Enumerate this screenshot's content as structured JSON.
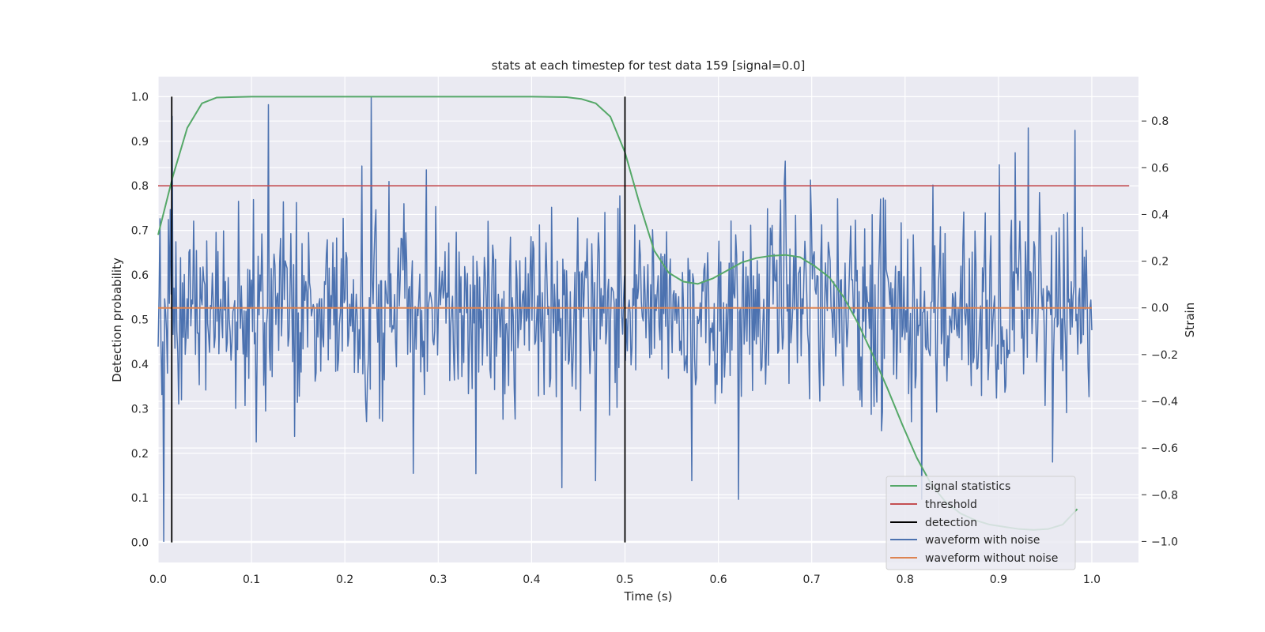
{
  "chart_data": {
    "type": "line",
    "title": "stats at each timestep for test data 159 [signal=0.0]",
    "xlabel": "Time (s)",
    "ylabel_left": "Detection probability",
    "ylabel_right": "Strain",
    "xlim": [
      0.0,
      1.05
    ],
    "ylim_left": [
      -0.045,
      1.045
    ],
    "ylim_right": [
      -1.09,
      0.99
    ],
    "x_ticks": [
      "0.0",
      "0.1",
      "0.2",
      "0.3",
      "0.4",
      "0.5",
      "0.6",
      "0.7",
      "0.8",
      "0.9",
      "1.0"
    ],
    "y_ticks_left": [
      "0.0",
      "0.1",
      "0.2",
      "0.3",
      "0.4",
      "0.5",
      "0.6",
      "0.7",
      "0.8",
      "0.9",
      "1.0"
    ],
    "y_ticks_right": [
      "−1.0",
      "−0.8",
      "−0.6",
      "−0.4",
      "−0.2",
      "0.0",
      "0.2",
      "0.4",
      "0.6",
      "0.8"
    ],
    "grid": true,
    "legend_position": "lower-right",
    "colors": {
      "background": "#eaeaf2",
      "grid": "#ffffff",
      "signal_statistics": "#55a868",
      "threshold": "#c44e52",
      "detection": "#000000",
      "waveform_with_noise": "#4c72b0",
      "waveform_without_noise": "#dd8452"
    },
    "series": [
      {
        "name": "signal statistics",
        "axis": "left",
        "x": [
          0.0,
          0.0156,
          0.0312,
          0.0469,
          0.0625,
          0.0781,
          0.1,
          0.2,
          0.3,
          0.4,
          0.4375,
          0.4531,
          0.4688,
          0.4844,
          0.5,
          0.5156,
          0.5312,
          0.5469,
          0.5625,
          0.5781,
          0.5938,
          0.6094,
          0.625,
          0.6406,
          0.6562,
          0.6719,
          0.6875,
          0.7031,
          0.7188,
          0.7344,
          0.75,
          0.7656,
          0.7812,
          0.7969,
          0.8125,
          0.8281,
          0.8438,
          0.8594,
          0.875,
          0.8906,
          0.9062,
          0.9219,
          0.9375,
          0.9531,
          0.9688,
          0.9844
        ],
        "values": [
          0.69,
          0.82,
          0.93,
          0.985,
          0.998,
          0.999,
          1.0,
          1.0,
          1.0,
          1.0,
          0.999,
          0.995,
          0.985,
          0.955,
          0.875,
          0.76,
          0.655,
          0.605,
          0.585,
          0.58,
          0.592,
          0.61,
          0.628,
          0.638,
          0.643,
          0.645,
          0.64,
          0.62,
          0.595,
          0.55,
          0.49,
          0.42,
          0.345,
          0.265,
          0.19,
          0.13,
          0.09,
          0.065,
          0.05,
          0.04,
          0.035,
          0.03,
          0.028,
          0.03,
          0.04,
          0.075
        ]
      },
      {
        "name": "threshold",
        "axis": "left",
        "x": [
          0.0,
          1.04
        ],
        "values": [
          0.8,
          0.8
        ]
      },
      {
        "name": "detection",
        "axis": "left",
        "x_positions": [
          0.0146,
          0.5
        ],
        "range": [
          0.0,
          1.0
        ]
      },
      {
        "name": "waveform with noise",
        "axis": "right",
        "x_range": [
          0.0,
          1.0
        ],
        "n_points": 1000,
        "rms": 0.22,
        "extremes": [
          {
            "x": 0.006,
            "y": -1.0
          },
          {
            "x": 0.015,
            "y": 0.82
          },
          {
            "x": 0.118,
            "y": 0.87
          },
          {
            "x": 0.228,
            "y": 0.9
          },
          {
            "x": 0.34,
            "y": -0.71
          },
          {
            "x": 0.432,
            "y": -0.77
          },
          {
            "x": 0.468,
            "y": -0.74
          },
          {
            "x": 0.572,
            "y": -0.74
          },
          {
            "x": 0.622,
            "y": -0.82
          },
          {
            "x": 0.818,
            "y": -0.82
          },
          {
            "x": 0.932,
            "y": 0.77
          },
          {
            "x": 0.958,
            "y": -0.66
          },
          {
            "x": 0.982,
            "y": 0.76
          }
        ]
      },
      {
        "name": "waveform without noise",
        "axis": "right",
        "x": [
          0.0,
          1.0
        ],
        "values": [
          0.0,
          0.0
        ]
      }
    ],
    "legend": [
      "signal statistics",
      "threshold",
      "detection",
      "waveform with noise",
      "waveform without noise"
    ]
  }
}
